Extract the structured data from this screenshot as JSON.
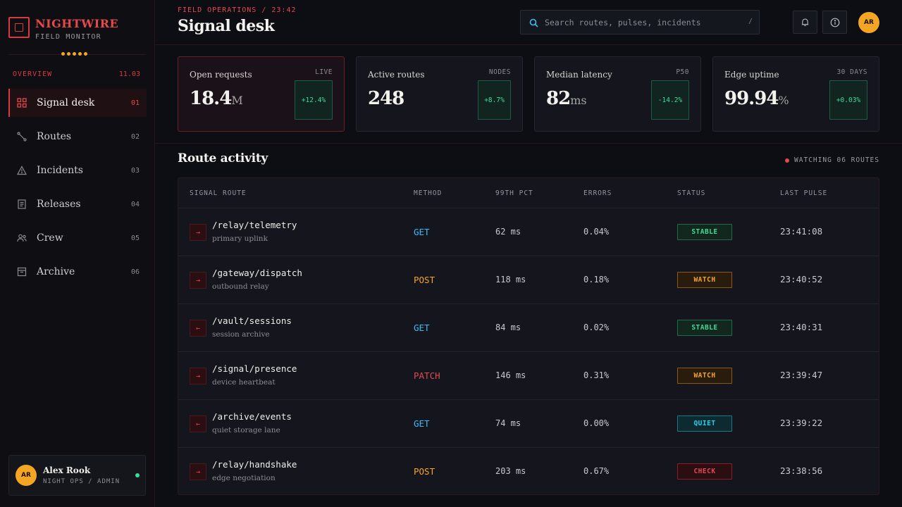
{
  "brand": {
    "name": "NIGHTWIRE",
    "subtitle": "FIELD MONITOR"
  },
  "sidebar": {
    "section_label": "OVERVIEW",
    "section_date": "11.03",
    "items": [
      {
        "label": "Signal desk",
        "num": "01",
        "icon": "grid-icon",
        "active": true
      },
      {
        "label": "Routes",
        "num": "02",
        "icon": "route-icon"
      },
      {
        "label": "Incidents",
        "num": "03",
        "icon": "warning-icon"
      },
      {
        "label": "Releases",
        "num": "04",
        "icon": "document-icon"
      },
      {
        "label": "Crew",
        "num": "05",
        "icon": "crew-icon"
      },
      {
        "label": "Archive",
        "num": "06",
        "icon": "archive-icon"
      }
    ]
  },
  "user": {
    "initials": "AR",
    "name": "Alex Rook",
    "role": "NIGHT OPS / ADMIN",
    "status": "online"
  },
  "header": {
    "breadcrumb": "FIELD OPERATIONS / 23:42",
    "title": "Signal desk",
    "search_placeholder": "Search routes, pulses, incidents",
    "search_shortcut": "/",
    "avatar_initials": "AR"
  },
  "stats": [
    {
      "label": "Open requests",
      "tag": "LIVE",
      "value": "18.4",
      "unit": "M",
      "delta": "+12.4%"
    },
    {
      "label": "Active routes",
      "tag": "NODES",
      "value": "248",
      "unit": "",
      "delta": "+8.7%"
    },
    {
      "label": "Median latency",
      "tag": "P50",
      "value": "82",
      "unit": "ms",
      "delta": "-14.2%"
    },
    {
      "label": "Edge uptime",
      "tag": "30 DAYS",
      "value": "99.94",
      "unit": "%",
      "delta": "+0.03%"
    }
  ],
  "activity": {
    "title": "Route activity",
    "watching": "WATCHING 06 ROUTES",
    "columns": [
      "SIGNAL ROUTE",
      "METHOD",
      "99TH PCT",
      "ERRORS",
      "STATUS",
      "LAST PULSE"
    ],
    "rows": [
      {
        "arrow": "→",
        "path": "/relay/telemetry",
        "desc": "primary uplink",
        "method": "GET",
        "p99": "62 ms",
        "errors": "0.04%",
        "status": "STABLE",
        "last": "23:41:08"
      },
      {
        "arrow": "→",
        "path": "/gateway/dispatch",
        "desc": "outbound relay",
        "method": "POST",
        "p99": "118 ms",
        "errors": "0.18%",
        "status": "WATCH",
        "last": "23:40:52"
      },
      {
        "arrow": "←",
        "path": "/vault/sessions",
        "desc": "session archive",
        "method": "GET",
        "p99": "84 ms",
        "errors": "0.02%",
        "status": "STABLE",
        "last": "23:40:31"
      },
      {
        "arrow": "→",
        "path": "/signal/presence",
        "desc": "device heartbeat",
        "method": "PATCH",
        "p99": "146 ms",
        "errors": "0.31%",
        "status": "WATCH",
        "last": "23:39:47"
      },
      {
        "arrow": "←",
        "path": "/archive/events",
        "desc": "quiet storage lane",
        "method": "GET",
        "p99": "74 ms",
        "errors": "0.00%",
        "status": "QUIET",
        "last": "23:39:22"
      },
      {
        "arrow": "→",
        "path": "/relay/handshake",
        "desc": "edge negotiation",
        "method": "POST",
        "p99": "203 ms",
        "errors": "0.67%",
        "status": "CHECK",
        "last": "23:38:56"
      }
    ]
  },
  "colors": {
    "accent": "#e5484d",
    "amber": "#f5a524",
    "get": "#38bdf8",
    "post": "#f5a524",
    "patch": "#e5484d",
    "stable": "#3ddc97",
    "watch": "#f5a524",
    "quiet": "#22d3ee",
    "check": "#e5484d"
  }
}
